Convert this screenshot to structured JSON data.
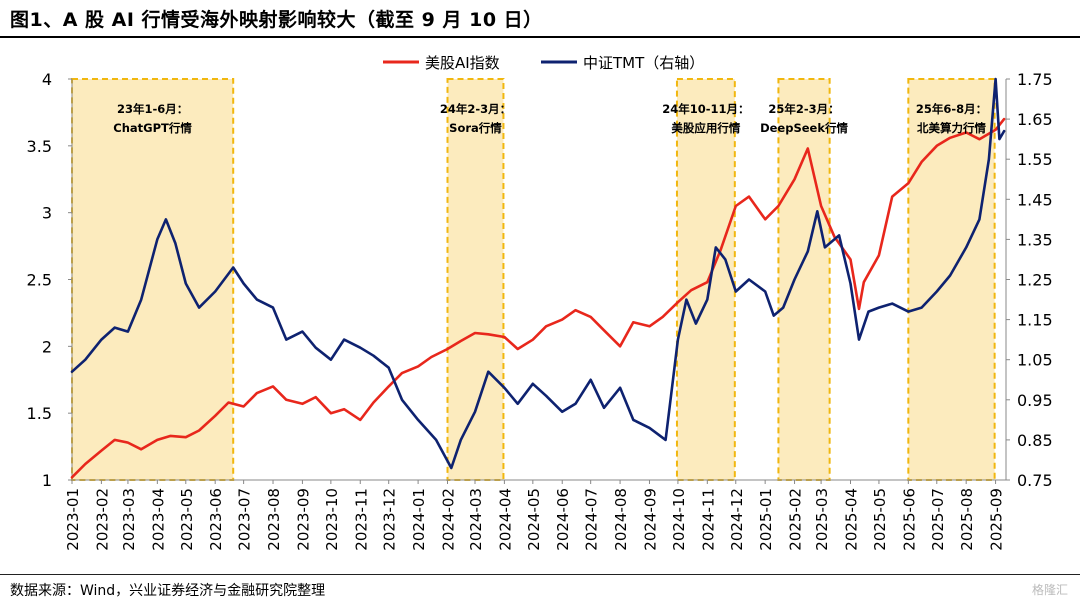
{
  "title": "图1、A 股 AI 行情受海外映射影响较大（截至 9 月 10 日）",
  "source": "数据来源：Wind，兴业证券经济与金融研究院整理",
  "watermark": "格隆汇",
  "chart_data": {
    "type": "line",
    "x_ticks": [
      "2023-01",
      "2023-02",
      "2023-03",
      "2023-04",
      "2023-05",
      "2023-06",
      "2023-07",
      "2023-08",
      "2023-09",
      "2023-10",
      "2023-11",
      "2023-12",
      "2024-01",
      "2024-02",
      "2024-03",
      "2024-04",
      "2024-05",
      "2024-06",
      "2024-07",
      "2024-08",
      "2024-09",
      "2024-10",
      "2024-11",
      "2024-12",
      "2025-01",
      "2025-02",
      "2025-03",
      "2025-04",
      "2025-05",
      "2025-06",
      "2025-07",
      "2025-08",
      "2025-09"
    ],
    "y_left": {
      "range": [
        1,
        4
      ],
      "ticks": [
        "1",
        "1.5",
        "2",
        "2.5",
        "3",
        "3.5",
        "4"
      ]
    },
    "y_right": {
      "range": [
        0.75,
        1.75
      ],
      "ticks": [
        "0.75",
        "0.85",
        "0.95",
        "1.05",
        "1.15",
        "1.25",
        "1.35",
        "1.45",
        "1.55",
        "1.65",
        "1.75"
      ]
    },
    "legend_position": "top-center",
    "series": [
      {
        "name": "美股AI指数",
        "axis": "left",
        "color": "#e8271c",
        "points": [
          [
            "2023-01-01",
            1.02
          ],
          [
            "2023-01-15",
            1.12
          ],
          [
            "2023-02-01",
            1.22
          ],
          [
            "2023-02-15",
            1.3
          ],
          [
            "2023-03-01",
            1.28
          ],
          [
            "2023-03-15",
            1.23
          ],
          [
            "2023-04-01",
            1.3
          ],
          [
            "2023-04-15",
            1.33
          ],
          [
            "2023-05-01",
            1.32
          ],
          [
            "2023-05-15",
            1.37
          ],
          [
            "2023-06-01",
            1.48
          ],
          [
            "2023-06-15",
            1.58
          ],
          [
            "2023-07-01",
            1.55
          ],
          [
            "2023-07-15",
            1.65
          ],
          [
            "2023-08-01",
            1.7
          ],
          [
            "2023-08-15",
            1.6
          ],
          [
            "2023-09-01",
            1.57
          ],
          [
            "2023-09-15",
            1.62
          ],
          [
            "2023-10-01",
            1.5
          ],
          [
            "2023-10-15",
            1.53
          ],
          [
            "2023-11-01",
            1.45
          ],
          [
            "2023-11-15",
            1.58
          ],
          [
            "2023-12-01",
            1.7
          ],
          [
            "2023-12-15",
            1.8
          ],
          [
            "2024-01-01",
            1.85
          ],
          [
            "2024-01-15",
            1.92
          ],
          [
            "2024-02-01",
            1.98
          ],
          [
            "2024-02-15",
            2.04
          ],
          [
            "2024-03-01",
            2.1
          ],
          [
            "2024-03-15",
            2.09
          ],
          [
            "2024-04-01",
            2.07
          ],
          [
            "2024-04-15",
            1.98
          ],
          [
            "2024-05-01",
            2.05
          ],
          [
            "2024-05-15",
            2.15
          ],
          [
            "2024-06-01",
            2.2
          ],
          [
            "2024-06-15",
            2.27
          ],
          [
            "2024-07-01",
            2.22
          ],
          [
            "2024-07-15",
            2.12
          ],
          [
            "2024-08-01",
            2.0
          ],
          [
            "2024-08-15",
            2.18
          ],
          [
            "2024-09-01",
            2.15
          ],
          [
            "2024-09-15",
            2.22
          ],
          [
            "2024-10-01",
            2.33
          ],
          [
            "2024-10-15",
            2.42
          ],
          [
            "2024-11-01",
            2.48
          ],
          [
            "2024-11-15",
            2.72
          ],
          [
            "2024-12-01",
            3.05
          ],
          [
            "2024-12-15",
            3.12
          ],
          [
            "2025-01-01",
            2.95
          ],
          [
            "2025-01-15",
            3.05
          ],
          [
            "2025-02-01",
            3.25
          ],
          [
            "2025-02-15",
            3.48
          ],
          [
            "2025-03-01",
            3.05
          ],
          [
            "2025-03-15",
            2.82
          ],
          [
            "2025-04-01",
            2.65
          ],
          [
            "2025-04-10",
            2.28
          ],
          [
            "2025-04-15",
            2.48
          ],
          [
            "2025-05-01",
            2.68
          ],
          [
            "2025-05-15",
            3.12
          ],
          [
            "2025-06-01",
            3.22
          ],
          [
            "2025-06-15",
            3.38
          ],
          [
            "2025-07-01",
            3.5
          ],
          [
            "2025-07-15",
            3.56
          ],
          [
            "2025-08-01",
            3.6
          ],
          [
            "2025-08-15",
            3.55
          ],
          [
            "2025-09-01",
            3.62
          ],
          [
            "2025-09-10",
            3.7
          ]
        ]
      },
      {
        "name": "中证TMT（右轴）",
        "axis": "right",
        "color": "#0e2270",
        "points": [
          [
            "2023-01-01",
            1.02
          ],
          [
            "2023-01-15",
            1.05
          ],
          [
            "2023-02-01",
            1.1
          ],
          [
            "2023-02-15",
            1.13
          ],
          [
            "2023-03-01",
            1.12
          ],
          [
            "2023-03-15",
            1.2
          ],
          [
            "2023-04-01",
            1.35
          ],
          [
            "2023-04-10",
            1.4
          ],
          [
            "2023-04-20",
            1.34
          ],
          [
            "2023-05-01",
            1.24
          ],
          [
            "2023-05-15",
            1.18
          ],
          [
            "2023-06-01",
            1.22
          ],
          [
            "2023-06-20",
            1.28
          ],
          [
            "2023-07-01",
            1.24
          ],
          [
            "2023-07-15",
            1.2
          ],
          [
            "2023-08-01",
            1.18
          ],
          [
            "2023-08-15",
            1.1
          ],
          [
            "2023-09-01",
            1.12
          ],
          [
            "2023-09-15",
            1.08
          ],
          [
            "2023-10-01",
            1.05
          ],
          [
            "2023-10-15",
            1.1
          ],
          [
            "2023-11-01",
            1.08
          ],
          [
            "2023-11-15",
            1.06
          ],
          [
            "2023-12-01",
            1.03
          ],
          [
            "2023-12-15",
            0.95
          ],
          [
            "2024-01-01",
            0.9
          ],
          [
            "2024-01-20",
            0.85
          ],
          [
            "2024-02-05",
            0.78
          ],
          [
            "2024-02-15",
            0.85
          ],
          [
            "2024-03-01",
            0.92
          ],
          [
            "2024-03-15",
            1.02
          ],
          [
            "2024-04-01",
            0.98
          ],
          [
            "2024-04-15",
            0.94
          ],
          [
            "2024-05-01",
            0.99
          ],
          [
            "2024-05-15",
            0.96
          ],
          [
            "2024-06-01",
            0.92
          ],
          [
            "2024-06-15",
            0.94
          ],
          [
            "2024-07-01",
            1.0
          ],
          [
            "2024-07-15",
            0.93
          ],
          [
            "2024-08-01",
            0.98
          ],
          [
            "2024-08-15",
            0.9
          ],
          [
            "2024-09-01",
            0.88
          ],
          [
            "2024-09-18",
            0.85
          ],
          [
            "2024-10-01",
            1.1
          ],
          [
            "2024-10-10",
            1.2
          ],
          [
            "2024-10-20",
            1.14
          ],
          [
            "2024-11-01",
            1.2
          ],
          [
            "2024-11-10",
            1.33
          ],
          [
            "2024-11-20",
            1.3
          ],
          [
            "2024-12-01",
            1.22
          ],
          [
            "2024-12-15",
            1.25
          ],
          [
            "2025-01-01",
            1.22
          ],
          [
            "2025-01-10",
            1.16
          ],
          [
            "2025-01-20",
            1.18
          ],
          [
            "2025-02-01",
            1.25
          ],
          [
            "2025-02-15",
            1.32
          ],
          [
            "2025-02-25",
            1.42
          ],
          [
            "2025-03-05",
            1.33
          ],
          [
            "2025-03-20",
            1.36
          ],
          [
            "2025-04-01",
            1.24
          ],
          [
            "2025-04-10",
            1.1
          ],
          [
            "2025-04-20",
            1.17
          ],
          [
            "2025-05-01",
            1.18
          ],
          [
            "2025-05-15",
            1.19
          ],
          [
            "2025-06-01",
            1.17
          ],
          [
            "2025-06-15",
            1.18
          ],
          [
            "2025-07-01",
            1.22
          ],
          [
            "2025-07-15",
            1.26
          ],
          [
            "2025-08-01",
            1.33
          ],
          [
            "2025-08-15",
            1.4
          ],
          [
            "2025-08-25",
            1.55
          ],
          [
            "2025-09-01",
            1.75
          ],
          [
            "2025-09-05",
            1.6
          ],
          [
            "2025-09-10",
            1.62
          ]
        ]
      }
    ],
    "shaded_periods": [
      {
        "label": "23年1-6月：ChatGPT行情",
        "start": "2023-01-01",
        "end": "2023-06-20"
      },
      {
        "label": "24年2-3月：Sora行情",
        "start": "2024-02-01",
        "end": "2024-03-31"
      },
      {
        "label": "24年10-11月：美股应用行情",
        "start": "2024-09-30",
        "end": "2024-11-30"
      },
      {
        "label": "25年2-3月：DeepSeek行情",
        "start": "2025-01-15",
        "end": "2025-03-10"
      },
      {
        "label": "25年6-8月：北美算力行情",
        "start": "2025-06-01",
        "end": "2025-08-31"
      }
    ]
  }
}
